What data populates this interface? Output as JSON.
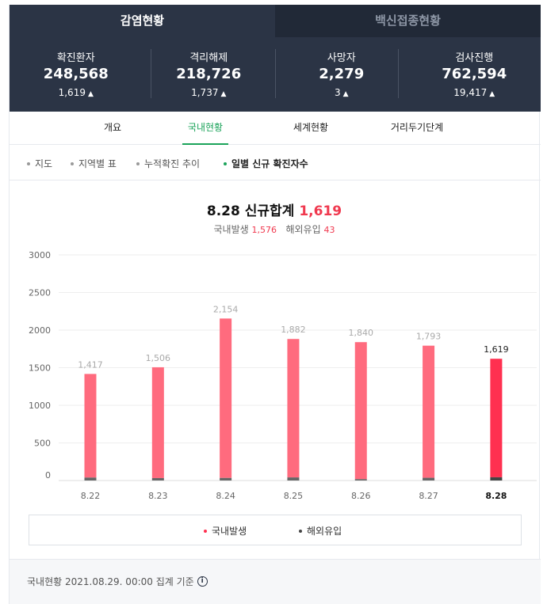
{
  "tabs": [
    {
      "label": "감염현황",
      "active": true
    },
    {
      "label": "백신접종현황",
      "active": false
    }
  ],
  "stats": [
    {
      "label": "확진환자",
      "value": "248,568",
      "delta": "1,619"
    },
    {
      "label": "격리해제",
      "value": "218,726",
      "delta": "1,737"
    },
    {
      "label": "사망자",
      "value": "2,279",
      "delta": "3"
    },
    {
      "label": "검사진행",
      "value": "762,594",
      "delta": "19,417"
    }
  ],
  "subnav": [
    "개요",
    "국내현황",
    "세계현황",
    "거리두기단계"
  ],
  "subnav_active": 1,
  "viewnav": [
    "지도",
    "지역별 표",
    "누적확진 추이",
    "일별 신규 확진자수"
  ],
  "viewnav_active": 3,
  "headline": {
    "date_label": "8.28 신규합계",
    "total": "1,619",
    "domestic_label": "국내발생",
    "domestic_value": "1,576",
    "overseas_label": "해외유입",
    "overseas_value": "43"
  },
  "chart_data": {
    "type": "bar",
    "categories": [
      "8.22",
      "8.23",
      "8.24",
      "8.25",
      "8.26",
      "8.27",
      "8.28"
    ],
    "series": [
      {
        "name": "국내발생",
        "values": [
          1378,
          1474,
          2120,
          1841,
          1822,
          1757,
          1576
        ]
      },
      {
        "name": "해외유입",
        "values": [
          39,
          32,
          34,
          41,
          18,
          36,
          43
        ]
      }
    ],
    "totals": [
      1417,
      1506,
      2154,
      1882,
      1840,
      1793,
      1619
    ],
    "total_labels": [
      "1,417",
      "1,506",
      "2,154",
      "1,882",
      "1,840",
      "1,793",
      "1,619"
    ],
    "yticks": [
      "0",
      "500",
      "1000",
      "1500",
      "2000",
      "2500",
      "3000"
    ],
    "ylim": [
      0,
      3000
    ],
    "colors": {
      "domestic": "#ff6b7e",
      "domestic_highlight": "#ff3050",
      "overseas": "#666666",
      "overseas_highlight": "#444444"
    },
    "highlight_index": 6,
    "grid": true,
    "legend": "bottom"
  },
  "legend": [
    {
      "label": "국내발생",
      "color": "#ff3050"
    },
    {
      "label": "해외유입",
      "color": "#444444"
    }
  ],
  "footer": {
    "text": "국내현황 2021.08.29. 00:00 집계 기준",
    "info_icon": "i"
  }
}
